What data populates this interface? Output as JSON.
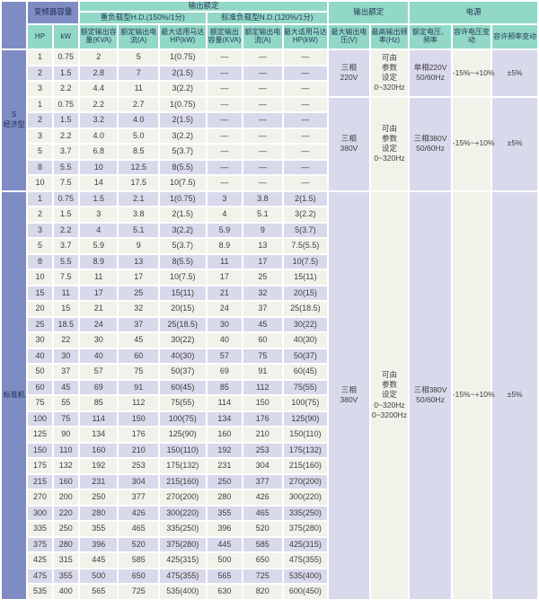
{
  "palette": {
    "header_teal": "#92d8c6",
    "section_blue": "#7e8cc3",
    "row_lavender": "#d9d9ec",
    "row_offwhite": "#f2f1ea",
    "grid_white": "#ffffff",
    "text_dark": "#3d3d3d"
  },
  "dash": "—",
  "header": {
    "capacity_group": "变频器容量",
    "hp": "HP",
    "kw": "kW",
    "output_rating_group": "输出额定",
    "hd_group": "重负载型H.D.(150%/1分)",
    "nd_group": "标准负载型N.D.(120%/1分)",
    "col_kva_hd": "额定输出容量(KVA)",
    "col_current_hd": "额定输出电流(A)",
    "col_motor_hd": "最大适用马达HP(kW)",
    "col_kva_nd": "额定输出容量(KVA)",
    "col_current_nd": "额定输出电流(A)",
    "col_motor_nd": "最大适用马达HP(kW)",
    "output_rating_group2": "输出额定",
    "col_max_voltage": "最大输出电压(V)",
    "col_max_freq": "最高输出频率(Hz)",
    "power_group": "电源",
    "col_rated_vf": "额定电压、频率",
    "col_voltage_tolerance": "容许电压变动",
    "col_freq_tolerance": "容许频率变动"
  },
  "sections": [
    {
      "label": "S\n经济型",
      "groups": [
        {
          "voltage": "三相\n220V",
          "freq": "可由\n参数\n设定\n0~320Hz",
          "rated_vf": "单相220V\n50/60Hz",
          "v_tol": "-15%~+10%",
          "f_tol": "±5%",
          "rows": [
            [
              "1",
              "0.75",
              "2",
              "5",
              "1(0.75)"
            ],
            [
              "2",
              "1.5",
              "2.8",
              "7",
              "2(1.5)"
            ],
            [
              "3",
              "2.2",
              "4.4",
              "11",
              "3(2.2)"
            ]
          ]
        },
        {
          "voltage": "三相\n380V",
          "freq": "可由\n参数\n设定\n0~320Hz",
          "rated_vf": "三相380V\n50/60Hz",
          "v_tol": "-15%~+10%",
          "f_tol": "±5%",
          "rows": [
            [
              "1",
              "0.75",
              "2.2",
              "2.7",
              "1(0.75)"
            ],
            [
              "2",
              "1.5",
              "3.2",
              "4.0",
              "2(1.5)"
            ],
            [
              "3",
              "2.2",
              "4.0",
              "5.0",
              "3(2.2)"
            ],
            [
              "5",
              "3.7",
              "6.8",
              "8.5",
              "5(3.7)"
            ],
            [
              "8",
              "5.5",
              "10",
              "12.5",
              "8(5.5)"
            ],
            [
              "10",
              "7.5",
              "14",
              "17.5",
              "10(7.5)"
            ]
          ]
        }
      ]
    },
    {
      "label": "标准机",
      "groups": [
        {
          "voltage": "三相\n380V",
          "freq": "可由\n参数\n设定\n0~320Hz\n0~3200Hz",
          "rated_vf": "三相380V\n50/60Hz",
          "v_tol": "-15%~+10%",
          "f_tol": "±5%",
          "rows": [
            [
              "1",
              "0.75",
              "1.5",
              "2.1",
              "1(0.75)",
              "3",
              "3.8",
              "2(1.5)"
            ],
            [
              "2",
              "1.5",
              "3",
              "3.8",
              "2(1.5)",
              "4",
              "5.1",
              "3(2.2)"
            ],
            [
              "3",
              "2.2",
              "4",
              "5.1",
              "3(2.2)",
              "5.9",
              "9",
              "5(3.7)"
            ],
            [
              "5",
              "3.7",
              "5.9",
              "9",
              "5(3.7)",
              "8.9",
              "13",
              "7.5(5.5)"
            ],
            [
              "8",
              "5.5",
              "8.9",
              "13",
              "8(5.5)",
              "11",
              "17",
              "10(7.5)"
            ],
            [
              "10",
              "7.5",
              "11",
              "17",
              "10(7.5)",
              "17",
              "25",
              "15(11)"
            ],
            [
              "15",
              "11",
              "17",
              "25",
              "15(11)",
              "21",
              "32",
              "20(15)"
            ],
            [
              "20",
              "15",
              "21",
              "32",
              "20(15)",
              "24",
              "37",
              "25(18.5)"
            ],
            [
              "25",
              "18.5",
              "24",
              "37",
              "25(18.5)",
              "30",
              "45",
              "30(22)"
            ],
            [
              "30",
              "22",
              "30",
              "45",
              "30(22)",
              "40",
              "60",
              "40(30)"
            ],
            [
              "40",
              "30",
              "40",
              "60",
              "40(30)",
              "57",
              "75",
              "50(37)"
            ],
            [
              "50",
              "37",
              "57",
              "75",
              "50(37)",
              "69",
              "91",
              "60(45)"
            ],
            [
              "60",
              "45",
              "69",
              "91",
              "60(45)",
              "85",
              "112",
              "75(55)"
            ],
            [
              "75",
              "55",
              "85",
              "112",
              "75(55)",
              "114",
              "150",
              "100(75)"
            ],
            [
              "100",
              "75",
              "114",
              "150",
              "100(75)",
              "134",
              "176",
              "125(90)"
            ],
            [
              "125",
              "90",
              "134",
              "176",
              "125(90)",
              "160",
              "210",
              "150(110)"
            ],
            [
              "150",
              "110",
              "160",
              "210",
              "150(110)",
              "192",
              "253",
              "175(132)"
            ],
            [
              "175",
              "132",
              "192",
              "253",
              "175(132)",
              "231",
              "304",
              "215(160)"
            ],
            [
              "215",
              "160",
              "231",
              "304",
              "215(160)",
              "250",
              "377",
              "270(200)"
            ],
            [
              "270",
              "200",
              "250",
              "377",
              "270(200)",
              "280",
              "426",
              "300(220)"
            ],
            [
              "300",
              "220",
              "280",
              "426",
              "300(220)",
              "355",
              "465",
              "335(250)"
            ],
            [
              "335",
              "250",
              "355",
              "465",
              "335(250)",
              "396",
              "520",
              "375(280)"
            ],
            [
              "375",
              "280",
              "396",
              "520",
              "375(280)",
              "445",
              "585",
              "425(315)"
            ],
            [
              "425",
              "315",
              "445",
              "585",
              "425(315)",
              "500",
              "650",
              "475(355)"
            ],
            [
              "475",
              "355",
              "500",
              "650",
              "475(355)",
              "565",
              "725",
              "535(400)"
            ],
            [
              "535",
              "400",
              "565",
              "725",
              "535(400)",
              "630",
              "820",
              "600(450)"
            ]
          ]
        }
      ]
    }
  ]
}
